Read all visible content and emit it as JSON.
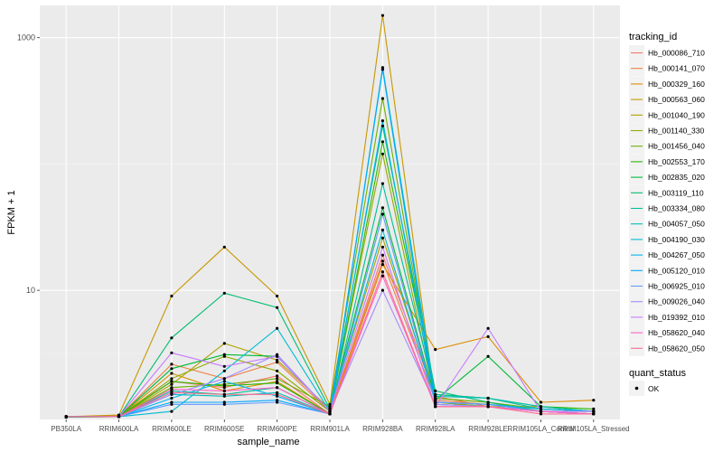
{
  "chart_data": {
    "type": "line",
    "xlabel": "sample_name",
    "ylabel": "FPKM + 1",
    "y_scale": "log10",
    "ylim": [
      0.95,
      1800
    ],
    "y_ticks": [
      10,
      1000
    ],
    "y_tick_labels": [
      "10",
      "1000"
    ],
    "categories": [
      "PB350LA",
      "RRIM600LA",
      "RRIM600LE",
      "RRIM600SE",
      "RRIM600PE",
      "RRIM901LA",
      "RRIM928BA",
      "RRIM928LA",
      "RRIM928LE",
      "RRIM105LA_Control",
      "RRIM105LA_Stressed"
    ],
    "grid": true,
    "legend": {
      "title": "tracking_id",
      "position": "right"
    },
    "legend2": {
      "title": "quant_status",
      "entries": [
        "OK"
      ]
    },
    "series": [
      {
        "name": "Hb_000086_710",
        "color": "#F8766D",
        "values": [
          0.99,
          1.02,
          1.9,
          1.7,
          2.1,
          1.05,
          19,
          1.45,
          1.2,
          1.1,
          1.05
        ]
      },
      {
        "name": "Hb_000141_070",
        "color": "#EE8044",
        "values": [
          1.0,
          1.0,
          2.6,
          2.0,
          2.7,
          1.1,
          17,
          1.35,
          1.25,
          1.15,
          1.1
        ]
      },
      {
        "name": "Hb_000329_160",
        "color": "#DC8D00",
        "values": [
          1.0,
          1.0,
          2.2,
          1.6,
          1.9,
          1.05,
          16,
          3.4,
          4.3,
          1.3,
          1.35
        ]
      },
      {
        "name": "Hb_000563_060",
        "color": "#C79800",
        "values": [
          1.0,
          1.03,
          9.0,
          22.0,
          9.0,
          1.25,
          1500,
          1.3,
          1.2,
          1.2,
          1.1
        ]
      },
      {
        "name": "Hb_001040_190",
        "color": "#AFA100",
        "values": [
          0.99,
          1.0,
          1.8,
          3.8,
          2.8,
          1.15,
          26,
          1.4,
          1.3,
          1.1,
          1.05
        ]
      },
      {
        "name": "Hb_001140_330",
        "color": "#93AA00",
        "values": [
          1.0,
          1.0,
          2.0,
          3.0,
          2.3,
          1.1,
          120,
          1.3,
          1.2,
          1.1,
          1.05
        ]
      },
      {
        "name": "Hb_001456_040",
        "color": "#6FB000",
        "values": [
          1.0,
          1.0,
          1.7,
          1.8,
          2.0,
          1.2,
          330,
          1.4,
          1.3,
          1.15,
          1.1
        ]
      },
      {
        "name": "Hb_002553_170",
        "color": "#2BB600",
        "values": [
          1.0,
          1.0,
          1.9,
          1.75,
          1.85,
          1.05,
          150,
          1.5,
          1.4,
          1.2,
          1.15
        ]
      },
      {
        "name": "Hb_002835_020",
        "color": "#00BA38",
        "values": [
          1.0,
          1.0,
          2.4,
          3.1,
          3.0,
          1.1,
          45,
          1.35,
          3.0,
          1.2,
          1.1
        ]
      },
      {
        "name": "Hb_003119_110",
        "color": "#00BE70",
        "values": [
          0.99,
          1.0,
          4.2,
          9.5,
          7.3,
          1.15,
          200,
          1.6,
          1.3,
          1.1,
          1.1
        ]
      },
      {
        "name": "Hb_003334_080",
        "color": "#00C097",
        "values": [
          1.0,
          1.0,
          1.6,
          1.5,
          1.7,
          1.05,
          70,
          1.5,
          1.4,
          1.15,
          1.1
        ]
      },
      {
        "name": "Hb_004057_050",
        "color": "#00C0B7",
        "values": [
          1.0,
          1.0,
          1.5,
          1.45,
          1.55,
          1.05,
          580,
          1.45,
          1.4,
          1.2,
          1.1
        ]
      },
      {
        "name": "Hb_004190_030",
        "color": "#00BCD4",
        "values": [
          1.0,
          1.0,
          1.1,
          2.3,
          5.0,
          1.1,
          30,
          1.3,
          1.25,
          1.1,
          1.05
        ]
      },
      {
        "name": "Hb_004267_050",
        "color": "#00B5EE",
        "values": [
          1.0,
          1.0,
          1.4,
          1.9,
          1.45,
          1.05,
          220,
          1.3,
          1.25,
          1.15,
          1.1
        ]
      },
      {
        "name": "Hb_005120_010",
        "color": "#00A9FF",
        "values": [
          1.0,
          1.0,
          1.3,
          1.3,
          1.35,
          1.05,
          560,
          1.25,
          1.2,
          1.1,
          1.05
        ]
      },
      {
        "name": "Hb_006925_010",
        "color": "#619CFF",
        "values": [
          1.0,
          1.0,
          1.25,
          1.25,
          1.3,
          1.05,
          40,
          1.3,
          1.25,
          1.1,
          1.05
        ]
      },
      {
        "name": "Hb_009026_040",
        "color": "#A58AFF",
        "values": [
          1.0,
          1.0,
          1.5,
          2.0,
          3.1,
          1.1,
          10.0,
          1.25,
          1.2,
          1.1,
          1.05
        ]
      },
      {
        "name": "Hb_019392_010",
        "color": "#C77CFF",
        "values": [
          1.0,
          1.0,
          3.2,
          2.5,
          3.0,
          1.1,
          22,
          1.2,
          5.0,
          1.1,
          1.1
        ]
      },
      {
        "name": "Hb_058620_040",
        "color": "#FF61C3",
        "values": [
          1.0,
          1.0,
          1.65,
          1.6,
          1.7,
          1.05,
          13,
          1.2,
          1.2,
          1.1,
          1.05
        ]
      },
      {
        "name": "Hb_058620_050",
        "color": "#FF6C91",
        "values": [
          1.0,
          1.0,
          1.55,
          1.5,
          1.5,
          1.05,
          14,
          1.2,
          1.2,
          1.05,
          1.05
        ]
      }
    ]
  }
}
